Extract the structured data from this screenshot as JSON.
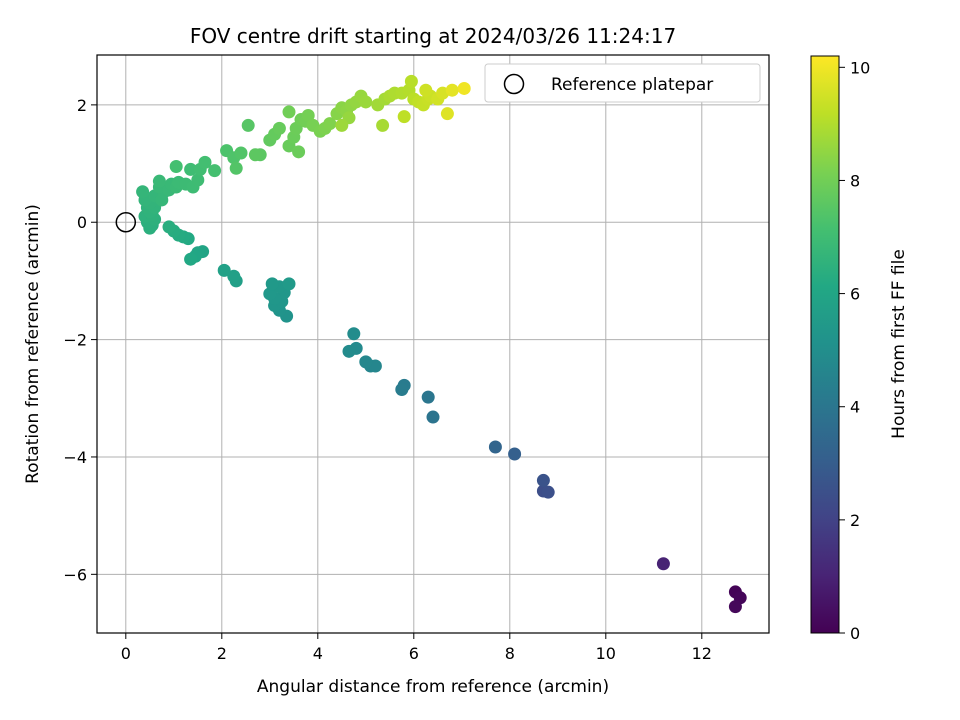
{
  "chart_data": {
    "type": "scatter",
    "title": "FOV centre drift starting at 2024/03/26 11:24:17",
    "xlabel": "Angular distance from reference (arcmin)",
    "ylabel": "Rotation from reference (arcmin)",
    "xlim": [
      -0.6,
      13.4
    ],
    "ylim": [
      -7.0,
      2.85
    ],
    "xticks": [
      0,
      2,
      4,
      6,
      8,
      10,
      12
    ],
    "yticks": [
      -6,
      -4,
      -2,
      0,
      2
    ],
    "grid": true,
    "legend": {
      "position": "top-right",
      "entries": [
        "Reference platepar"
      ]
    },
    "reference_point": {
      "x": 0,
      "y": 0
    },
    "colorbar": {
      "label": "Hours from first FF file",
      "colormap": "viridis",
      "range": [
        0,
        10.2
      ],
      "ticks": [
        0,
        2,
        4,
        6,
        8,
        10
      ]
    },
    "points": [
      {
        "x": 12.7,
        "y": -6.3,
        "h": 0.1
      },
      {
        "x": 12.8,
        "y": -6.4,
        "h": 0.15
      },
      {
        "x": 12.7,
        "y": -6.55,
        "h": 0.2
      },
      {
        "x": 11.2,
        "y": -5.82,
        "h": 1.0
      },
      {
        "x": 8.7,
        "y": -4.58,
        "h": 2.4
      },
      {
        "x": 8.8,
        "y": -4.6,
        "h": 2.5
      },
      {
        "x": 8.7,
        "y": -4.4,
        "h": 2.6
      },
      {
        "x": 8.1,
        "y": -3.95,
        "h": 3.1
      },
      {
        "x": 7.7,
        "y": -3.83,
        "h": 3.3
      },
      {
        "x": 6.4,
        "y": -3.32,
        "h": 3.9
      },
      {
        "x": 6.3,
        "y": -2.98,
        "h": 4.0
      },
      {
        "x": 5.8,
        "y": -2.78,
        "h": 4.2
      },
      {
        "x": 5.75,
        "y": -2.85,
        "h": 4.25
      },
      {
        "x": 5.1,
        "y": -2.45,
        "h": 4.6
      },
      {
        "x": 5.2,
        "y": -2.45,
        "h": 4.65
      },
      {
        "x": 5.0,
        "y": -2.38,
        "h": 4.7
      },
      {
        "x": 4.8,
        "y": -2.15,
        "h": 4.8
      },
      {
        "x": 4.65,
        "y": -2.2,
        "h": 4.85
      },
      {
        "x": 4.75,
        "y": -1.9,
        "h": 4.9
      },
      {
        "x": 3.35,
        "y": -1.6,
        "h": 5.2
      },
      {
        "x": 3.2,
        "y": -1.5,
        "h": 5.25
      },
      {
        "x": 3.1,
        "y": -1.42,
        "h": 5.3
      },
      {
        "x": 3.25,
        "y": -1.35,
        "h": 5.32
      },
      {
        "x": 3.3,
        "y": -1.2,
        "h": 5.35
      },
      {
        "x": 3.1,
        "y": -1.3,
        "h": 5.38
      },
      {
        "x": 3.0,
        "y": -1.22,
        "h": 5.4
      },
      {
        "x": 3.2,
        "y": -1.1,
        "h": 5.42
      },
      {
        "x": 3.05,
        "y": -1.05,
        "h": 5.45
      },
      {
        "x": 3.4,
        "y": -1.05,
        "h": 5.48
      },
      {
        "x": 2.3,
        "y": -1.0,
        "h": 5.7
      },
      {
        "x": 2.25,
        "y": -0.92,
        "h": 5.75
      },
      {
        "x": 2.05,
        "y": -0.82,
        "h": 5.8
      },
      {
        "x": 1.6,
        "y": -0.5,
        "h": 5.95
      },
      {
        "x": 1.5,
        "y": -0.52,
        "h": 6.0
      },
      {
        "x": 1.45,
        "y": -0.58,
        "h": 6.05
      },
      {
        "x": 1.35,
        "y": -0.63,
        "h": 6.1
      },
      {
        "x": 1.3,
        "y": -0.28,
        "h": 6.15
      },
      {
        "x": 1.2,
        "y": -0.25,
        "h": 6.2
      },
      {
        "x": 1.1,
        "y": -0.22,
        "h": 6.25
      },
      {
        "x": 1.0,
        "y": -0.15,
        "h": 6.3
      },
      {
        "x": 0.9,
        "y": -0.08,
        "h": 6.35
      },
      {
        "x": 0.55,
        "y": -0.05,
        "h": 6.4
      },
      {
        "x": 0.5,
        "y": -0.1,
        "h": 6.42
      },
      {
        "x": 0.45,
        "y": 0.0,
        "h": 6.45
      },
      {
        "x": 0.6,
        "y": 0.05,
        "h": 6.48
      },
      {
        "x": 0.4,
        "y": 0.1,
        "h": 6.5
      },
      {
        "x": 0.55,
        "y": 0.12,
        "h": 6.52
      },
      {
        "x": 0.5,
        "y": 0.18,
        "h": 6.55
      },
      {
        "x": 0.45,
        "y": 0.25,
        "h": 6.58
      },
      {
        "x": 0.6,
        "y": 0.25,
        "h": 6.6
      },
      {
        "x": 0.5,
        "y": 0.32,
        "h": 6.62
      },
      {
        "x": 0.4,
        "y": 0.38,
        "h": 6.65
      },
      {
        "x": 0.35,
        "y": 0.52,
        "h": 6.68
      },
      {
        "x": 0.6,
        "y": 0.45,
        "h": 6.7
      },
      {
        "x": 0.75,
        "y": 0.38,
        "h": 6.72
      },
      {
        "x": 0.8,
        "y": 0.52,
        "h": 6.75
      },
      {
        "x": 0.7,
        "y": 0.6,
        "h": 6.78
      },
      {
        "x": 0.9,
        "y": 0.55,
        "h": 6.8
      },
      {
        "x": 0.95,
        "y": 0.65,
        "h": 6.82
      },
      {
        "x": 0.7,
        "y": 0.7,
        "h": 6.85
      },
      {
        "x": 1.05,
        "y": 0.6,
        "h": 6.88
      },
      {
        "x": 1.1,
        "y": 0.68,
        "h": 6.9
      },
      {
        "x": 1.25,
        "y": 0.65,
        "h": 6.92
      },
      {
        "x": 1.4,
        "y": 0.6,
        "h": 6.95
      },
      {
        "x": 1.5,
        "y": 0.72,
        "h": 6.98
      },
      {
        "x": 1.35,
        "y": 0.9,
        "h": 7.0
      },
      {
        "x": 1.55,
        "y": 0.9,
        "h": 7.05
      },
      {
        "x": 1.65,
        "y": 1.02,
        "h": 7.1
      },
      {
        "x": 1.05,
        "y": 0.95,
        "h": 7.12
      },
      {
        "x": 1.85,
        "y": 0.88,
        "h": 7.15
      },
      {
        "x": 2.1,
        "y": 1.22,
        "h": 7.3
      },
      {
        "x": 2.25,
        "y": 1.1,
        "h": 7.35
      },
      {
        "x": 2.4,
        "y": 1.18,
        "h": 7.4
      },
      {
        "x": 2.3,
        "y": 0.92,
        "h": 7.42
      },
      {
        "x": 2.55,
        "y": 1.65,
        "h": 7.5
      },
      {
        "x": 2.8,
        "y": 1.15,
        "h": 7.6
      },
      {
        "x": 2.7,
        "y": 1.15,
        "h": 7.62
      },
      {
        "x": 3.0,
        "y": 1.4,
        "h": 7.7
      },
      {
        "x": 3.1,
        "y": 1.5,
        "h": 7.75
      },
      {
        "x": 3.2,
        "y": 1.6,
        "h": 7.8
      },
      {
        "x": 3.4,
        "y": 1.3,
        "h": 7.82
      },
      {
        "x": 3.5,
        "y": 1.45,
        "h": 7.85
      },
      {
        "x": 3.6,
        "y": 1.2,
        "h": 7.88
      },
      {
        "x": 3.55,
        "y": 1.6,
        "h": 7.9
      },
      {
        "x": 3.65,
        "y": 1.75,
        "h": 7.95
      },
      {
        "x": 3.4,
        "y": 1.88,
        "h": 7.98
      },
      {
        "x": 3.75,
        "y": 1.72,
        "h": 8.0
      },
      {
        "x": 3.8,
        "y": 1.82,
        "h": 8.05
      },
      {
        "x": 3.9,
        "y": 1.65,
        "h": 8.1
      },
      {
        "x": 4.05,
        "y": 1.55,
        "h": 8.15
      },
      {
        "x": 4.15,
        "y": 1.6,
        "h": 8.2
      },
      {
        "x": 4.25,
        "y": 1.68,
        "h": 8.25
      },
      {
        "x": 4.4,
        "y": 1.85,
        "h": 8.35
      },
      {
        "x": 4.5,
        "y": 1.95,
        "h": 8.4
      },
      {
        "x": 4.6,
        "y": 1.9,
        "h": 8.45
      },
      {
        "x": 4.7,
        "y": 2.0,
        "h": 8.5
      },
      {
        "x": 4.8,
        "y": 2.05,
        "h": 8.55
      },
      {
        "x": 4.65,
        "y": 1.78,
        "h": 8.58
      },
      {
        "x": 4.9,
        "y": 2.15,
        "h": 8.6
      },
      {
        "x": 5.0,
        "y": 2.05,
        "h": 8.65
      },
      {
        "x": 4.5,
        "y": 1.65,
        "h": 8.7
      },
      {
        "x": 5.25,
        "y": 2.0,
        "h": 8.75
      },
      {
        "x": 5.4,
        "y": 2.1,
        "h": 8.8
      },
      {
        "x": 5.35,
        "y": 1.65,
        "h": 8.85
      },
      {
        "x": 5.5,
        "y": 2.15,
        "h": 8.9
      },
      {
        "x": 5.6,
        "y": 2.2,
        "h": 8.95
      },
      {
        "x": 5.75,
        "y": 2.2,
        "h": 9.0
      },
      {
        "x": 5.9,
        "y": 2.25,
        "h": 9.05
      },
      {
        "x": 5.95,
        "y": 2.4,
        "h": 9.1
      },
      {
        "x": 6.0,
        "y": 2.1,
        "h": 9.15
      },
      {
        "x": 5.8,
        "y": 1.8,
        "h": 9.2
      },
      {
        "x": 6.1,
        "y": 2.05,
        "h": 9.25
      },
      {
        "x": 6.2,
        "y": 2.0,
        "h": 9.3
      },
      {
        "x": 6.3,
        "y": 2.1,
        "h": 9.35
      },
      {
        "x": 6.35,
        "y": 2.15,
        "h": 9.4
      },
      {
        "x": 6.25,
        "y": 2.25,
        "h": 9.45
      },
      {
        "x": 6.5,
        "y": 2.1,
        "h": 9.5
      },
      {
        "x": 6.6,
        "y": 2.2,
        "h": 9.6
      },
      {
        "x": 6.7,
        "y": 1.85,
        "h": 9.7
      },
      {
        "x": 6.8,
        "y": 2.25,
        "h": 9.8
      },
      {
        "x": 7.05,
        "y": 2.28,
        "h": 10.0
      }
    ]
  }
}
